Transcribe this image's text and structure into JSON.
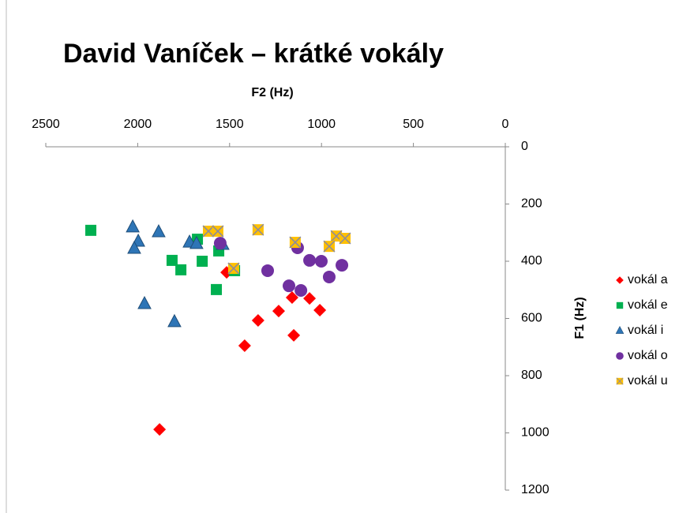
{
  "chart_data": {
    "type": "scatter",
    "title": "David Vaníček – krátké vokály",
    "x_label": "F2 (Hz)",
    "y_label": "F1 (Hz)",
    "xlim": [
      2500,
      0
    ],
    "xticks": [
      2500,
      2000,
      1500,
      1000,
      500,
      0
    ],
    "ylim": [
      0,
      1200
    ],
    "yticks": [
      0,
      200,
      400,
      600,
      800,
      1000,
      1200
    ],
    "legend": "right",
    "series": [
      {
        "name": "vokál a",
        "color": "#ff0000",
        "marker": "diamond",
        "x": [
          1516,
          1418,
          1345,
          1233,
          1160,
          1151,
          1065,
          1009,
          1881
        ],
        "values": [
          439,
          695,
          607,
          574,
          527,
          659,
          530,
          571,
          988
        ]
      },
      {
        "name": "vokál e",
        "color": "#00b050",
        "marker": "square",
        "x": [
          2255,
          1675,
          1813,
          1765,
          1649,
          1559,
          1572,
          1473
        ],
        "values": [
          292,
          323,
          397,
          430,
          400,
          364,
          499,
          433
        ]
      },
      {
        "name": "vokál i",
        "color": "#2e75b6",
        "marker": "triangle",
        "x": [
          2027,
          1997,
          2019,
          1886,
          1718,
          1680,
          1963,
          1800,
          1538
        ],
        "values": [
          281,
          331,
          356,
          298,
          334,
          339,
          549,
          612,
          342
        ]
      },
      {
        "name": "vokál o",
        "color": "#7030a0",
        "marker": "circle",
        "x": [
          1551,
          1293,
          1130,
          1065,
          1001,
          889,
          958,
          1177,
          1112
        ],
        "values": [
          337,
          433,
          353,
          397,
          400,
          414,
          455,
          486,
          502
        ]
      },
      {
        "name": "vokál u",
        "color": "#ffc000",
        "marker": "xsquare",
        "x": [
          1615,
          1564,
          1345,
          1143,
          919,
          958,
          872,
          1478
        ],
        "values": [
          295,
          295,
          290,
          334,
          312,
          348,
          320,
          425
        ]
      }
    ]
  }
}
